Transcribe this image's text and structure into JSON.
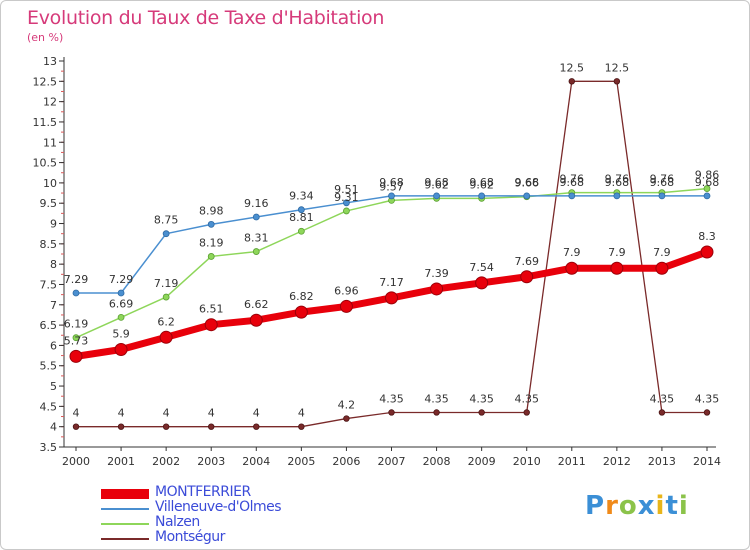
{
  "header": {
    "title": "Evolution du Taux de Taxe d'Habitation",
    "subtitle": "(en %)"
  },
  "logo": {
    "letters": [
      "P",
      "r",
      "o",
      "x",
      "i",
      "t",
      "i"
    ],
    "colors": [
      "#3b8fd6",
      "#f08a1a",
      "#8bc34a",
      "#3b8fd6",
      "#e8b51a",
      "#3b8fd6",
      "#8bc34a"
    ]
  },
  "chart_data": {
    "type": "line",
    "title": "Evolution du Taux de Taxe d'Habitation",
    "subtitle": "(en %)",
    "xlabel": "",
    "ylabel": "",
    "x": [
      "2000",
      "2001",
      "2002",
      "2003",
      "2004",
      "2005",
      "2006",
      "2007",
      "2008",
      "2009",
      "2010",
      "2011",
      "2012",
      "2013",
      "2014"
    ],
    "ylim": [
      3.5,
      13
    ],
    "yticks": [
      "3.5",
      "4",
      "4.5",
      "5",
      "5.5",
      "6",
      "6.5",
      "7",
      "7.5",
      "8",
      "8.5",
      "9",
      "9.5",
      "10",
      "10.5",
      "11",
      "11.5",
      "12",
      "12.5",
      "13"
    ],
    "grid": false,
    "legend_position": "bottom-left",
    "series": [
      {
        "name": "MONTFERRIER",
        "color": "#e8000b",
        "values": [
          5.73,
          5.9,
          6.2,
          6.51,
          6.62,
          6.82,
          6.96,
          7.17,
          7.39,
          7.54,
          7.69,
          7.9,
          7.9,
          7.9,
          8.3
        ],
        "labels": [
          "5.73",
          "5.9",
          "6.2",
          "6.51",
          "6.62",
          "6.82",
          "6.96",
          "7.17",
          "7.39",
          "7.54",
          "7.69",
          "7.9",
          "7.9",
          "7.9",
          "8.3"
        ]
      },
      {
        "name": "Villeneuve-d'Olmes",
        "color": "#4a8fd0",
        "values": [
          7.29,
          7.29,
          8.75,
          8.98,
          9.16,
          9.34,
          9.51,
          9.68,
          9.68,
          9.68,
          9.68,
          9.68,
          9.68,
          9.68,
          9.68
        ],
        "labels": [
          "7.29",
          "7.29",
          "8.75",
          "8.98",
          "9.16",
          "9.34",
          "9.51",
          "9.68",
          "9.68",
          "9.68",
          "9.68",
          "9.68",
          "9.68",
          "9.68",
          "9.68"
        ]
      },
      {
        "name": "Nalzen",
        "color": "#8ed65a",
        "values": [
          6.19,
          6.69,
          7.19,
          8.19,
          8.31,
          8.81,
          9.31,
          9.57,
          9.62,
          9.62,
          9.66,
          9.76,
          9.76,
          9.76,
          9.86
        ],
        "labels": [
          "6.19",
          "6.69",
          "7.19",
          "8.19",
          "8.31",
          "8.81",
          "9.31",
          "9.57",
          "9.62",
          "9.62",
          "9.66",
          "9.76",
          "9.76",
          "9.76",
          "9.86"
        ]
      },
      {
        "name": "Montségur",
        "color": "#7a2a2a",
        "values": [
          4,
          4,
          4,
          4,
          4,
          4,
          4.2,
          4.35,
          4.35,
          4.35,
          4.35,
          12.5,
          12.5,
          4.35,
          4.35
        ],
        "labels": [
          "4",
          "4",
          "4",
          "4",
          "4",
          "4",
          "4.2",
          "4.35",
          "4.35",
          "4.35",
          "4.35",
          "12.5",
          "12.5",
          "4.35",
          "4.35"
        ]
      }
    ]
  }
}
